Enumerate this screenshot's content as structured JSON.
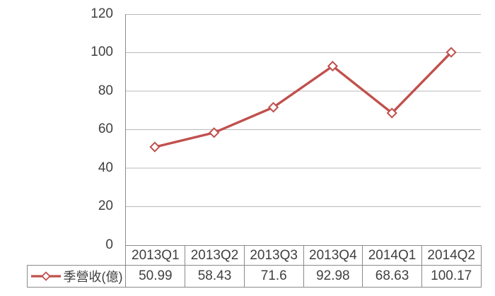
{
  "chart_data": {
    "type": "line",
    "title": "",
    "xlabel": "",
    "ylabel": "",
    "categories": [
      "2013Q1",
      "2013Q2",
      "2013Q3",
      "2013Q4",
      "2014Q1",
      "2014Q2"
    ],
    "series": [
      {
        "name": "季營收(億)",
        "values": [
          50.99,
          58.43,
          71.6,
          92.98,
          68.63,
          100.17
        ],
        "color": "#C0504D",
        "marker": "diamond"
      }
    ],
    "ylim": [
      0,
      120
    ],
    "y_ticks": [
      120,
      100,
      80,
      60,
      40,
      20,
      0
    ],
    "grid": true,
    "legend_position": "data-table-left",
    "data_table_shown": true
  },
  "colors": {
    "series": "#C0504D",
    "marker_fill": "#FFFFFF",
    "gridline": "#B9B9B9",
    "axis_border": "#8A8A8A",
    "text": "#404040",
    "background": "#FFFFFF"
  }
}
